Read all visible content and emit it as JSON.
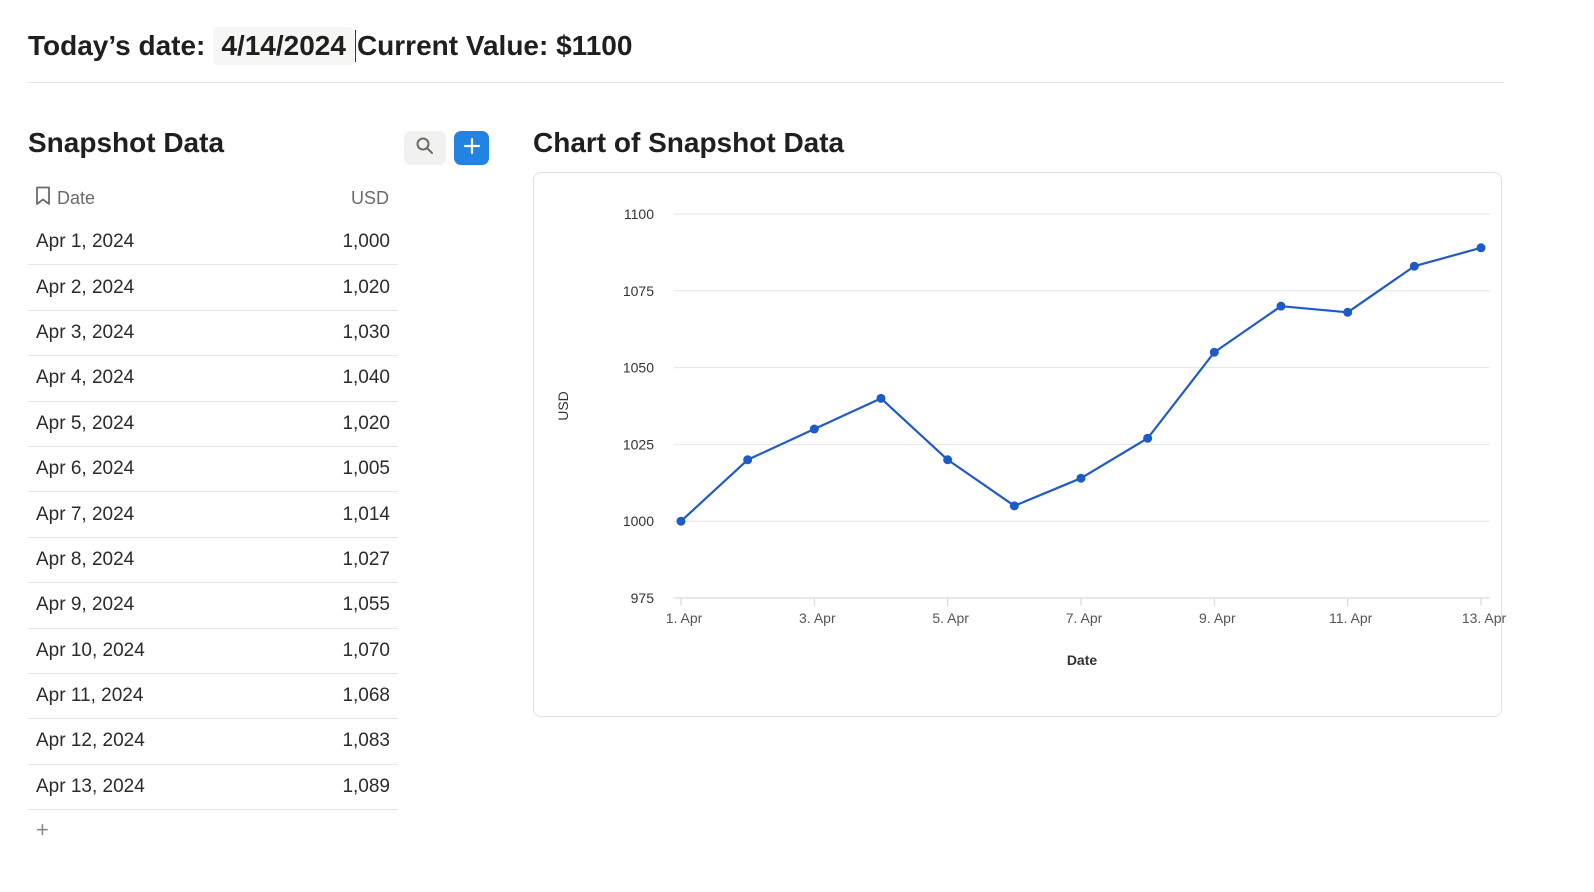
{
  "header": {
    "date_label": "Today’s date:",
    "date_value": "4/14/2024",
    "current_value_text": "Current Value: $1100"
  },
  "left": {
    "title": "Snapshot Data",
    "search_icon": "search-icon",
    "add_icon": "plus-icon",
    "table": {
      "headers": {
        "date": "Date",
        "usd": "USD"
      },
      "rows": [
        {
          "date": "Apr 1, 2024",
          "usd": "1,000"
        },
        {
          "date": "Apr 2, 2024",
          "usd": "1,020"
        },
        {
          "date": "Apr 3, 2024",
          "usd": "1,030"
        },
        {
          "date": "Apr 4, 2024",
          "usd": "1,040"
        },
        {
          "date": "Apr 5, 2024",
          "usd": "1,020"
        },
        {
          "date": "Apr 6, 2024",
          "usd": "1,005"
        },
        {
          "date": "Apr 7, 2024",
          "usd": "1,014"
        },
        {
          "date": "Apr 8, 2024",
          "usd": "1,027"
        },
        {
          "date": "Apr 9, 2024",
          "usd": "1,055"
        },
        {
          "date": "Apr 10, 2024",
          "usd": "1,070"
        },
        {
          "date": "Apr 11, 2024",
          "usd": "1,068"
        },
        {
          "date": "Apr 12, 2024",
          "usd": "1,083"
        },
        {
          "date": "Apr 13, 2024",
          "usd": "1,089"
        }
      ],
      "add_row_label": "+"
    }
  },
  "right": {
    "title": "Chart of Snapshot Data"
  },
  "colors": {
    "accent": "#2383e2",
    "line": "#1f5bc7"
  },
  "chart_data": {
    "type": "line",
    "title": "",
    "xlabel": "Date",
    "ylabel": "USD",
    "x": [
      "1. Apr",
      "2. Apr",
      "3. Apr",
      "4. Apr",
      "5. Apr",
      "6. Apr",
      "7. Apr",
      "8. Apr",
      "9. Apr",
      "10. Apr",
      "11. Apr",
      "12. Apr",
      "13. Apr"
    ],
    "x_tick_labels": [
      "1. Apr",
      "3. Apr",
      "5. Apr",
      "7. Apr",
      "9. Apr",
      "11. Apr",
      "13. Apr"
    ],
    "series": [
      {
        "name": "USD",
        "values": [
          1000,
          1020,
          1030,
          1040,
          1020,
          1005,
          1014,
          1027,
          1055,
          1070,
          1068,
          1083,
          1089
        ]
      }
    ],
    "y_ticks": [
      975,
      1000,
      1025,
      1050,
      1075,
      1100
    ],
    "ylim": [
      975,
      1100
    ],
    "grid": true,
    "legend": "none"
  }
}
